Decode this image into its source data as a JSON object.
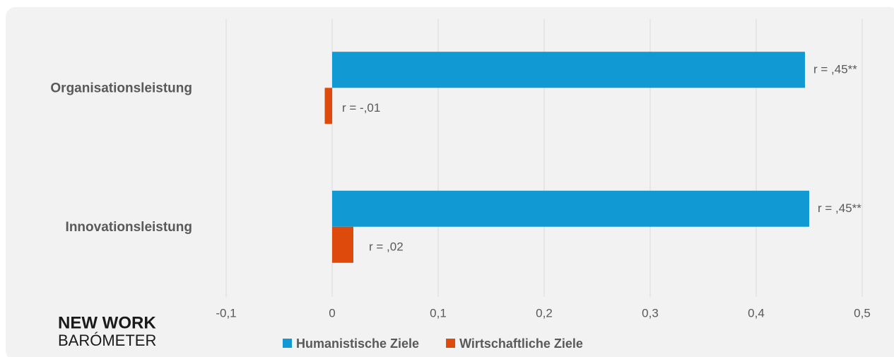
{
  "logo": {
    "line1": "NEW WORK",
    "line2": "BARÓMETER"
  },
  "chart_data": {
    "type": "barh",
    "categories": [
      "Organisationsleistung",
      "Innovationsleistung"
    ],
    "series": [
      {
        "name": "Humanistische Ziele",
        "color": "#1199d4",
        "values": [
          0.446,
          0.45
        ],
        "value_labels": [
          "r = ,45**",
          "r = ,45**"
        ]
      },
      {
        "name": "Wirtschaftliche Ziele",
        "color": "#dd4a0b",
        "values": [
          -0.007,
          0.02
        ],
        "value_labels": [
          "r = -,01",
          "r = ,02"
        ]
      }
    ],
    "xlim": [
      -0.1,
      0.5
    ],
    "xticks": [
      {
        "value": -0.1,
        "label": "-0,1"
      },
      0,
      {
        "value": 0.1,
        "label": "0,1"
      },
      {
        "value": 0.2,
        "label": "0,2"
      },
      {
        "value": 0.3,
        "label": "0,3"
      },
      {
        "value": 0.4,
        "label": "0,4"
      },
      {
        "value": 0.5,
        "label": "0,5"
      }
    ],
    "grid": true,
    "legend": "bottom"
  }
}
